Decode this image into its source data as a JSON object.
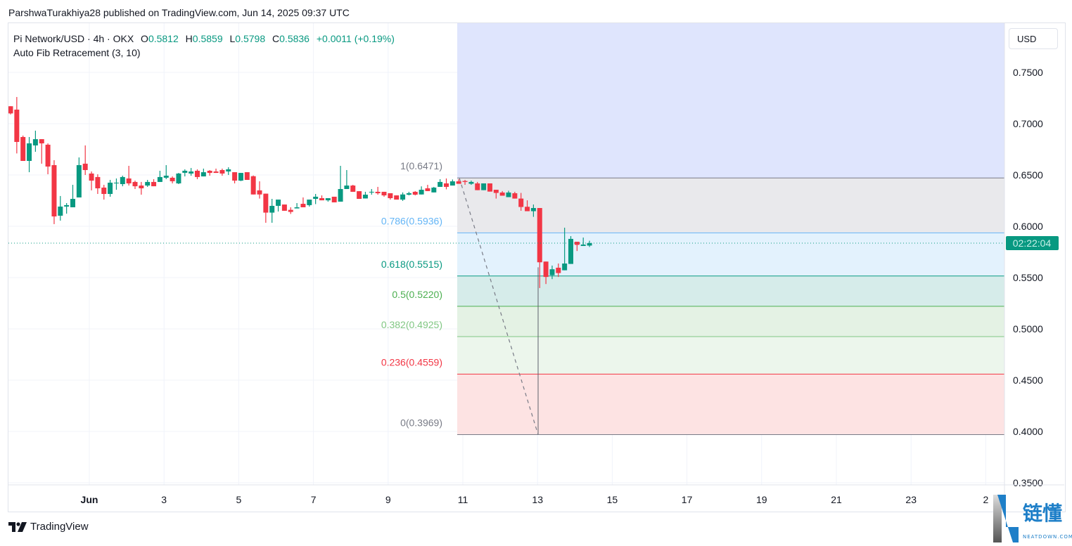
{
  "publish_line": "ParshwaTurakhiya28 published on TradingView.com, Jun 14, 2025 09:37 UTC",
  "legend": {
    "symbol": "Pi Network/USD · 4h · OKX",
    "o_label": "O",
    "o": "0.5812",
    "h_label": "H",
    "h": "0.5859",
    "l_label": "L",
    "l": "0.5798",
    "c_label": "C",
    "c": "0.5836",
    "change": "+0.0011 (+0.19%)",
    "indicator": "Auto Fib Retracement (3, 10)"
  },
  "currency_button": "USD",
  "countdown": "02:22:04",
  "footer": {
    "brand": "TradingView",
    "logo_text": "TV"
  },
  "watermark": {
    "text": "链懂",
    "sub": "NEATDOWN.COM"
  },
  "colors": {
    "up": "#089981",
    "down": "#f23645",
    "grid": "#f0f3fa",
    "last_price": "#089981"
  },
  "chart_data": {
    "type": "candlestick",
    "interval": "4h",
    "x_start": "2025-05-29 20:00",
    "ylim": [
      0.35,
      0.7775
    ],
    "y_ticks": [
      "0.7500",
      "0.7000",
      "0.6500",
      "0.6000",
      "0.5500",
      "0.5000",
      "0.4500",
      "0.4000",
      "0.3500"
    ],
    "x_ticks": [
      {
        "label": "Jun",
        "day": 1
      },
      {
        "label": "3",
        "day": 3
      },
      {
        "label": "5",
        "day": 5
      },
      {
        "label": "7",
        "day": 7
      },
      {
        "label": "9",
        "day": 9
      },
      {
        "label": "11",
        "day": 11
      },
      {
        "label": "13",
        "day": 13
      },
      {
        "label": "15",
        "day": 15
      },
      {
        "label": "17",
        "day": 17
      },
      {
        "label": "19",
        "day": 19
      },
      {
        "label": "21",
        "day": 21
      },
      {
        "label": "23",
        "day": 23
      },
      {
        "label": "2",
        "day": 25
      }
    ],
    "grid": true,
    "last_price": 0.5836,
    "ohlc": [
      [
        0.717,
        0.717,
        0.709,
        0.71
      ],
      [
        0.7137,
        0.726,
        0.671,
        0.6822
      ],
      [
        0.687,
        0.6884,
        0.6637,
        0.6637
      ],
      [
        0.6637,
        0.687,
        0.6527,
        0.6808
      ],
      [
        0.6788,
        0.6932,
        0.6726,
        0.6849
      ],
      [
        0.6849,
        0.6849,
        0.661,
        0.6808
      ],
      [
        0.6795,
        0.6808,
        0.6507,
        0.6582
      ],
      [
        0.6596,
        0.6644,
        0.6021,
        0.6096
      ],
      [
        0.6103,
        0.6295,
        0.6055,
        0.6192
      ],
      [
        0.6192,
        0.6226,
        0.6123,
        0.6206
      ],
      [
        0.6185,
        0.6404,
        0.6185,
        0.6267
      ],
      [
        0.6281,
        0.6671,
        0.6281,
        0.6596
      ],
      [
        0.661,
        0.6788,
        0.65,
        0.6548
      ],
      [
        0.6514,
        0.6534,
        0.635,
        0.6445
      ],
      [
        0.648,
        0.6507,
        0.6315,
        0.637
      ],
      [
        0.6377,
        0.6404,
        0.626,
        0.6315
      ],
      [
        0.6315,
        0.6452,
        0.6288,
        0.6425
      ],
      [
        0.6418,
        0.6466,
        0.6356,
        0.6425
      ],
      [
        0.6411,
        0.6493,
        0.639,
        0.648
      ],
      [
        0.6466,
        0.6589,
        0.6397,
        0.6418
      ],
      [
        0.6432,
        0.6445,
        0.6363,
        0.639
      ],
      [
        0.6397,
        0.6432,
        0.6308,
        0.637
      ],
      [
        0.6397,
        0.6452,
        0.6384,
        0.6432
      ],
      [
        0.6432,
        0.6459,
        0.639,
        0.639
      ],
      [
        0.6432,
        0.6541,
        0.6432,
        0.648
      ],
      [
        0.6473,
        0.6596,
        0.6459,
        0.6493
      ],
      [
        0.6473,
        0.6486,
        0.6418,
        0.6439
      ],
      [
        0.6418,
        0.652,
        0.6411,
        0.6514
      ],
      [
        0.6521,
        0.6555,
        0.6486,
        0.6541
      ],
      [
        0.6514,
        0.6568,
        0.6493,
        0.6534
      ],
      [
        0.6541,
        0.6555,
        0.6459,
        0.648
      ],
      [
        0.6486,
        0.6562,
        0.6486,
        0.6527
      ],
      [
        0.6541,
        0.6548,
        0.6493,
        0.652
      ],
      [
        0.6534,
        0.6562,
        0.652,
        0.652
      ],
      [
        0.6548,
        0.6562,
        0.6493,
        0.6514
      ],
      [
        0.6534,
        0.6575,
        0.65,
        0.6555
      ],
      [
        0.6527,
        0.6527,
        0.6418,
        0.6445
      ],
      [
        0.6445,
        0.652,
        0.644,
        0.652
      ],
      [
        0.6527,
        0.6527,
        0.6452,
        0.6452
      ],
      [
        0.6488,
        0.6495,
        0.631,
        0.631
      ],
      [
        0.635,
        0.6438,
        0.627,
        0.631
      ],
      [
        0.6318,
        0.6318,
        0.6034,
        0.6133
      ],
      [
        0.6133,
        0.6267,
        0.6034,
        0.6199
      ],
      [
        0.6199,
        0.626,
        0.6144,
        0.626
      ],
      [
        0.6212,
        0.6212,
        0.6151,
        0.6151
      ],
      [
        0.616,
        0.6185,
        0.612,
        0.614
      ],
      [
        0.6174,
        0.6226,
        0.6174,
        0.6185
      ],
      [
        0.6219,
        0.6281,
        0.6185,
        0.6185
      ],
      [
        0.6206,
        0.626,
        0.6192,
        0.626
      ],
      [
        0.6267,
        0.6315,
        0.6216,
        0.6288
      ],
      [
        0.6274,
        0.6301,
        0.6253,
        0.6253
      ],
      [
        0.6253,
        0.6274,
        0.624,
        0.6274
      ],
      [
        0.6288,
        0.6288,
        0.6233,
        0.6233
      ],
      [
        0.624,
        0.6589,
        0.624,
        0.6363
      ],
      [
        0.6363,
        0.6548,
        0.6363,
        0.6397
      ],
      [
        0.6397,
        0.6404,
        0.6336,
        0.6336
      ],
      [
        0.6342,
        0.6342,
        0.6267,
        0.6267
      ],
      [
        0.6271,
        0.6336,
        0.6271,
        0.6308
      ],
      [
        0.6329,
        0.6363,
        0.6308,
        0.6336
      ],
      [
        0.6336,
        0.6384,
        0.6308,
        0.6322
      ],
      [
        0.6336,
        0.6336,
        0.6288,
        0.6301
      ],
      [
        0.6322,
        0.6322,
        0.626,
        0.6274
      ],
      [
        0.6301,
        0.6301,
        0.626,
        0.626
      ],
      [
        0.626,
        0.633,
        0.6247,
        0.631
      ],
      [
        0.6308,
        0.6336,
        0.6301,
        0.6322
      ],
      [
        0.6336,
        0.6343,
        0.6301,
        0.6308
      ],
      [
        0.631,
        0.6389,
        0.631,
        0.6356
      ],
      [
        0.637,
        0.6404,
        0.6343,
        0.6343
      ],
      [
        0.633,
        0.6384,
        0.633,
        0.6377
      ],
      [
        0.6384,
        0.6459,
        0.6384,
        0.6432
      ],
      [
        0.6418,
        0.6466,
        0.636,
        0.6384
      ],
      [
        0.6397,
        0.6456,
        0.6397,
        0.6438
      ],
      [
        0.6438,
        0.6459,
        0.6414,
        0.6414
      ],
      [
        0.6441,
        0.6452,
        0.6404,
        0.6432
      ],
      [
        0.6414,
        0.6445,
        0.6404,
        0.6432
      ],
      [
        0.6418,
        0.6432,
        0.6352,
        0.6352
      ],
      [
        0.6352,
        0.6418,
        0.6352,
        0.6418
      ],
      [
        0.6418,
        0.6418,
        0.6338,
        0.6338
      ],
      [
        0.6356,
        0.6356,
        0.627,
        0.6325
      ],
      [
        0.6329,
        0.6343,
        0.6298,
        0.6298
      ],
      [
        0.6284,
        0.6346,
        0.6284,
        0.6329
      ],
      [
        0.6322,
        0.6336,
        0.627,
        0.627
      ],
      [
        0.627,
        0.6325,
        0.6151,
        0.6188
      ],
      [
        0.619,
        0.6253,
        0.6147,
        0.6147
      ],
      [
        0.6147,
        0.6212,
        0.6092,
        0.6178
      ],
      [
        0.6178,
        0.6178,
        0.5398,
        0.5649
      ],
      [
        0.5656,
        0.5656,
        0.5437,
        0.5506
      ],
      [
        0.5523,
        0.5617,
        0.5485,
        0.5581
      ],
      [
        0.5596,
        0.5637,
        0.5506,
        0.5544
      ],
      [
        0.5571,
        0.5986,
        0.5571,
        0.5637
      ],
      [
        0.5633,
        0.5904,
        0.5633,
        0.5877
      ],
      [
        0.5849,
        0.5849,
        0.5759,
        0.5819
      ],
      [
        0.5808,
        0.589,
        0.5808,
        0.5822
      ],
      [
        0.5812,
        0.5859,
        0.5798,
        0.5836
      ]
    ],
    "fib_levels": [
      {
        "ratio": "1",
        "price": 0.6471,
        "label": "1(0.6471)",
        "color": "#787b86",
        "fill": "#e9e9ec"
      },
      {
        "ratio": "0.786",
        "price": 0.5936,
        "label": "0.786(0.5936)",
        "color": "#64b5f6",
        "fill": "#e3f2fd"
      },
      {
        "ratio": "0.618",
        "price": 0.5515,
        "label": "0.618(0.5515)",
        "color": "#089981",
        "fill": "#d6ecea"
      },
      {
        "ratio": "0.5",
        "price": 0.522,
        "label": "0.5(0.5220)",
        "color": "#4caf50",
        "fill": "#e4f2e4"
      },
      {
        "ratio": "0.382",
        "price": 0.4925,
        "label": "0.382(0.4925)",
        "color": "#81c784",
        "fill": "#ecf6ec"
      },
      {
        "ratio": "0.236",
        "price": 0.4559,
        "label": "0.236(0.4559)",
        "color": "#f23645",
        "fill": "#fde3e3"
      },
      {
        "ratio": "0",
        "price": 0.3969,
        "label": "0(0.3969)",
        "color": "#787b86",
        "fill": null
      }
    ],
    "fib_above_fill": "#dfe5fd"
  }
}
